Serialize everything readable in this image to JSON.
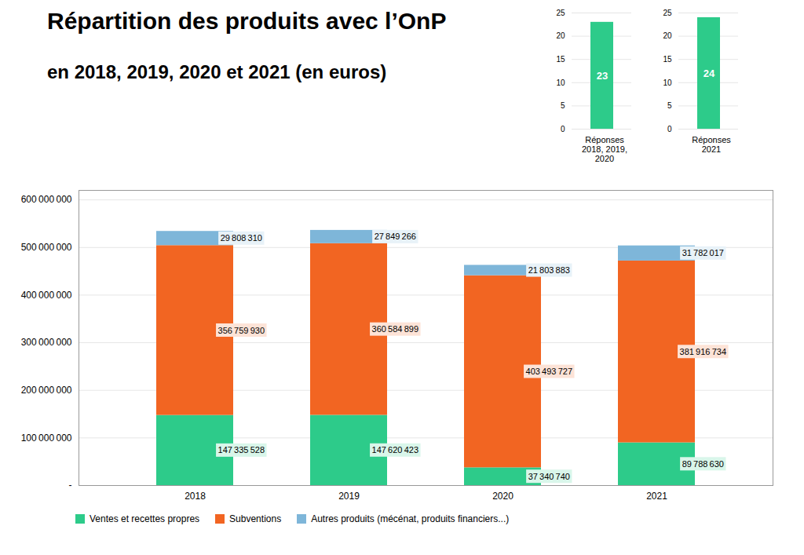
{
  "chart_data": [
    {
      "type": "bar",
      "stacked": true,
      "title": "Répartition des produits avec l’OnP",
      "subtitle": "en 2018, 2019, 2020 et 2021 (en euros)",
      "categories": [
        "2018",
        "2019",
        "2020",
        "2021"
      ],
      "series": [
        {
          "name": "Ventes et recettes propres",
          "color": "#2DCB8A",
          "values": [
            147335528,
            147620423,
            37340740,
            89788630
          ],
          "value_labels": [
            "147 335 528",
            "147 620 423",
            "37 340 740",
            "89 788 630"
          ]
        },
        {
          "name": "Subventions",
          "color": "#F26522",
          "values": [
            356759930,
            360584899,
            403493727,
            381916734
          ],
          "value_labels": [
            "356 759 930",
            "360 584 899",
            "403 493 727",
            "381 916 734"
          ]
        },
        {
          "name": "Autres produits (mécénat, produits financiers...)",
          "color": "#7EB6D9",
          "values": [
            29808310,
            27849266,
            21803883,
            31782017
          ],
          "value_labels": [
            "29 808 310",
            "27 849 266",
            "21 803 883",
            "31 782 017"
          ]
        }
      ],
      "ylim": [
        0,
        620000000
      ],
      "yticks": [
        {
          "value": 0,
          "label": "-"
        },
        {
          "value": 100000000,
          "label": "100 000 000"
        },
        {
          "value": 200000000,
          "label": "200 000 000"
        },
        {
          "value": 300000000,
          "label": "300 000 000"
        },
        {
          "value": 400000000,
          "label": "400 000 000"
        },
        {
          "value": 500000000,
          "label": "500 000 000"
        },
        {
          "value": 600000000,
          "label": "600 000 000"
        }
      ],
      "grid": true,
      "legend": "bottom",
      "data_labels": true
    },
    {
      "type": "bar",
      "categories": [
        null
      ],
      "values": [
        23
      ],
      "color": "#2DCB8A",
      "xlabel": "Réponses\n2018, 2019,\n2020",
      "ylim": [
        0,
        25
      ],
      "yticks": [
        0,
        5,
        10,
        15,
        20,
        25
      ],
      "grid": true,
      "data_labels": true,
      "tick_labels": "y"
    },
    {
      "type": "bar",
      "categories": [
        null
      ],
      "values": [
        24
      ],
      "color": "#2DCB8A",
      "xlabel": "Réponses\n2021",
      "ylim": [
        0,
        25
      ],
      "yticks": [
        0,
        5,
        10,
        15,
        20,
        25
      ],
      "grid": true,
      "data_labels": true,
      "tick_labels": "y"
    }
  ]
}
